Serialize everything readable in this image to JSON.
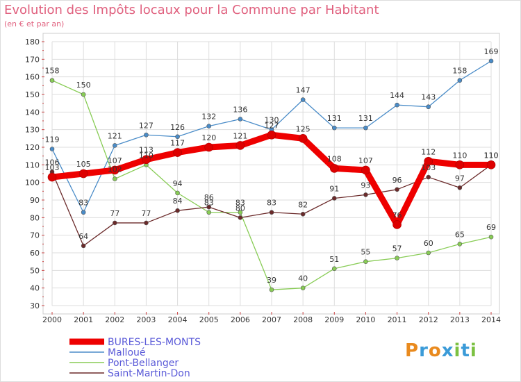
{
  "title": "Evolution des Impôts locaux pour la Commune par Habitant",
  "subtitle": "(en € et par an)",
  "logo": {
    "text": "Proxiti",
    "letters": [
      "P",
      "r",
      "o",
      "x",
      "i",
      "t",
      "i"
    ],
    "colors": [
      "#e98a1e",
      "#3b9bd8",
      "#e98a1e",
      "#3b9bd8",
      "#7cc142",
      "#3b9bd8",
      "#7cc142"
    ]
  },
  "chart_data": {
    "type": "line",
    "title": "Evolution des Impôts locaux pour la Commune par Habitant",
    "subtitle": "(en € et par an)",
    "x": [
      "2000",
      "2001",
      "2002",
      "2003",
      "2004",
      "2005",
      "2006",
      "2007",
      "2008",
      "2009",
      "2010",
      "2011",
      "2012",
      "2013",
      "2014"
    ],
    "ylim": [
      30,
      180
    ],
    "yticks": [
      30,
      40,
      50,
      60,
      70,
      80,
      90,
      100,
      110,
      120,
      130,
      140,
      150,
      160,
      170,
      180
    ],
    "grid": true,
    "legend_position": "bottom-left",
    "series": [
      {
        "name": "BURES-LES-MONTS",
        "color": "#ee0000",
        "thick": true,
        "values": [
          103,
          105,
          107,
          113,
          117,
          120,
          121,
          127,
          125,
          108,
          107,
          76,
          112,
          110,
          110
        ],
        "labels": [
          "103",
          "105",
          "107",
          "113",
          "117",
          "120",
          "121",
          "127",
          "125",
          "108",
          "107",
          "76",
          "112",
          "110",
          "110"
        ]
      },
      {
        "name": "Malloué",
        "color": "#4a8cc8",
        "values": [
          119,
          83,
          121,
          127,
          126,
          132,
          136,
          130,
          147,
          131,
          131,
          144,
          143,
          158,
          169
        ],
        "labels": [
          "119",
          "83",
          "121",
          "127",
          "126",
          "132",
          "136",
          "130",
          "147",
          "131",
          "131",
          "144",
          "143",
          "158",
          "169"
        ]
      },
      {
        "name": "Pont-Bellanger",
        "color": "#88cc55",
        "values": [
          158,
          150,
          102,
          110,
          94,
          83,
          83,
          39,
          40,
          51,
          55,
          57,
          60,
          65,
          69
        ],
        "labels": [
          "158",
          "150",
          "102",
          "110",
          "94",
          "83",
          "83",
          "39",
          "40",
          "51",
          "55",
          "57",
          "60",
          "65",
          "69"
        ]
      },
      {
        "name": "Saint-Martin-Don",
        "color": "#6b2a2a",
        "values": [
          106,
          64,
          77,
          77,
          84,
          86,
          80,
          83,
          82,
          91,
          93,
          96,
          103,
          97,
          110
        ],
        "labels": [
          "106",
          "64",
          "77",
          "77",
          "84",
          "86",
          "80",
          "83",
          "82",
          "91",
          "93",
          "96",
          "103",
          "97",
          "110"
        ]
      }
    ]
  }
}
